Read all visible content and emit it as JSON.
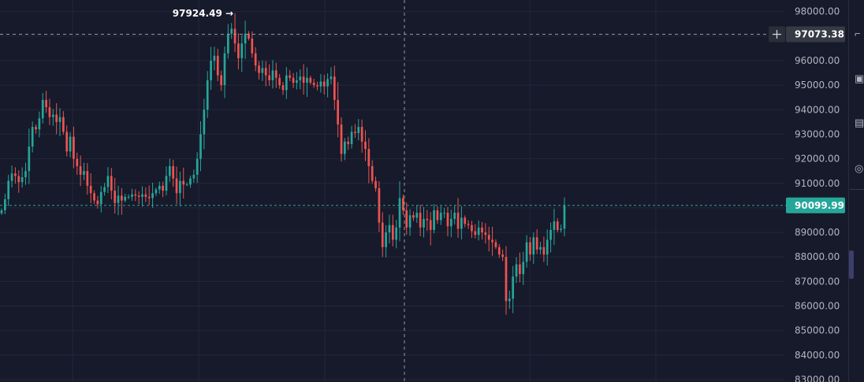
{
  "chart_data": {
    "type": "candlestick",
    "ylim": [
      83000,
      98600
    ],
    "y_ticks": [
      "98000.00",
      "97000.00",
      "96000.00",
      "95000.00",
      "94000.00",
      "93000.00",
      "92000.00",
      "91000.00",
      "90000.00",
      "89000.00",
      "88000.00",
      "87000.00",
      "86000.00",
      "85000.00",
      "84000.00",
      "83000.00"
    ],
    "y_tick_values": [
      98000,
      97000,
      96000,
      95000,
      94000,
      93000,
      92000,
      91000,
      90000,
      89000,
      88000,
      87000,
      86000,
      85000,
      84000,
      83000
    ],
    "high_annotation": {
      "label": "97924.49 →",
      "value": 97924.49
    },
    "crosshair_price": {
      "label": "97073.38",
      "value": 97073.38
    },
    "last_price": {
      "label": "90099.99",
      "value": 90099.99
    },
    "colors": {
      "up": "#26a69a",
      "down": "#ef5350",
      "background": "#161a2b",
      "grid": "#232738",
      "last_price": "#26a69a",
      "crosshair": "#9598a1"
    },
    "closes": [
      89900,
      90350,
      91100,
      91400,
      91300,
      91050,
      91250,
      91500,
      92500,
      93300,
      93200,
      93650,
      94400,
      94100,
      93700,
      93800,
      93500,
      93700,
      93100,
      92300,
      92900,
      92000,
      91700,
      91350,
      91500,
      90900,
      90600,
      90300,
      90150,
      90650,
      90850,
      91300,
      90700,
      90200,
      90500,
      90300,
      90450,
      90450,
      90550,
      90500,
      90450,
      90550,
      90450,
      90400,
      90600,
      90750,
      90900,
      90700,
      91300,
      91700,
      91200,
      90600,
      91100,
      90950,
      90950,
      91200,
      91350,
      92000,
      93000,
      94000,
      95200,
      96000,
      96200,
      95400,
      95000,
      96300,
      97100,
      97300,
      96700,
      96100,
      96700,
      97100,
      96900,
      96300,
      95800,
      95500,
      95700,
      95400,
      95200,
      95600,
      95300,
      95000,
      94800,
      95400,
      95300,
      95100,
      95200,
      95350,
      95100,
      95300,
      95100,
      95000,
      94950,
      95150,
      94950,
      95250,
      95350,
      94400,
      93400,
      92200,
      92700,
      92600,
      93100,
      93050,
      93300,
      92700,
      92400,
      91700,
      91100,
      90800,
      89400,
      88400,
      89000,
      89300,
      88700,
      89200,
      90400,
      89900,
      89200,
      89700,
      89600,
      89800,
      89200,
      89550,
      89500,
      89100,
      89900,
      89500,
      89800,
      89800,
      89250,
      89550,
      89800,
      89150,
      89600,
      89350,
      89300,
      89050,
      88900,
      89200,
      89000,
      88900,
      88700,
      88600,
      88400,
      88100,
      88000,
      86200,
      86300,
      87200,
      87700,
      87300,
      87800,
      88600,
      88100,
      88800,
      88300,
      88400,
      88100,
      88700,
      89100,
      89450,
      89100,
      89150,
      90099.99
    ]
  }
}
